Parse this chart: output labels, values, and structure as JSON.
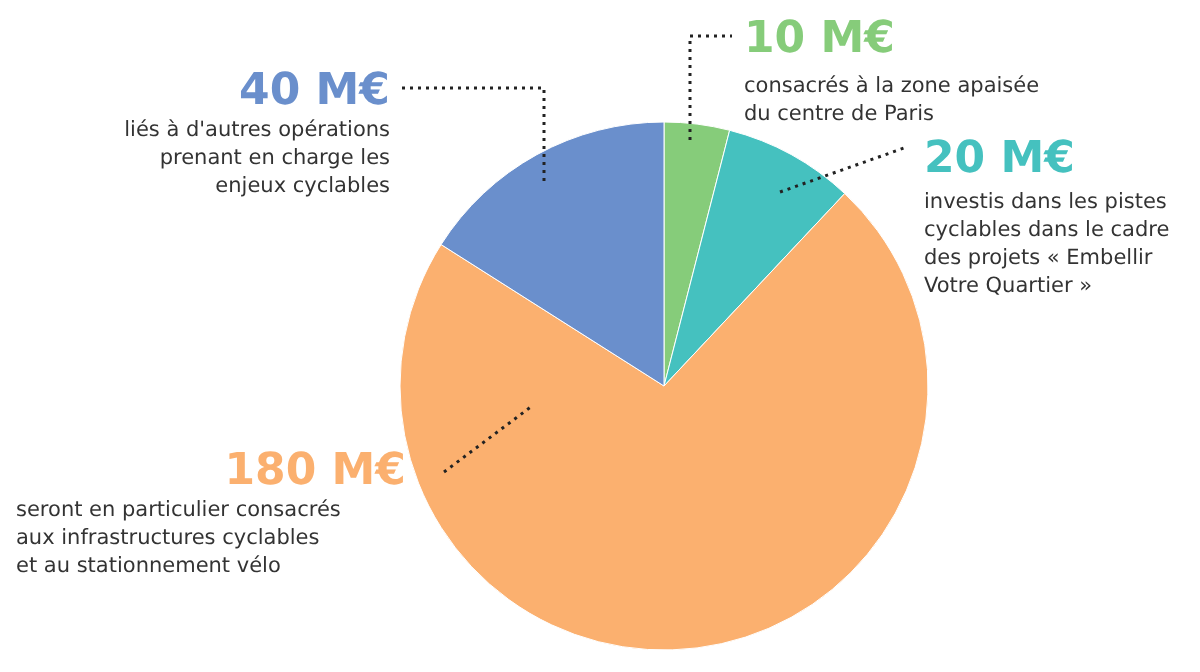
{
  "chart_data": {
    "type": "pie",
    "categories": [
      "consacrés à la zone apaisée\ndu centre de Paris",
      "investis dans les pistes\ncyclables dans le cadre\ndes projets « Embellir\nVotre Quartier »",
      "seront en particulier consacrés\naux infrastructures cyclables\net au stationnement vélo",
      "liés à d'autres opérations\nprenant en charge les\nenjeux cyclables"
    ],
    "values": [
      10,
      20,
      180,
      40
    ],
    "colors": [
      "#86cc7a",
      "#45c1bf",
      "#fbb06f",
      "#6a8fcc"
    ],
    "value_labels": [
      "10 M€",
      "20 M€",
      "180 M€",
      "40 M€"
    ]
  }
}
